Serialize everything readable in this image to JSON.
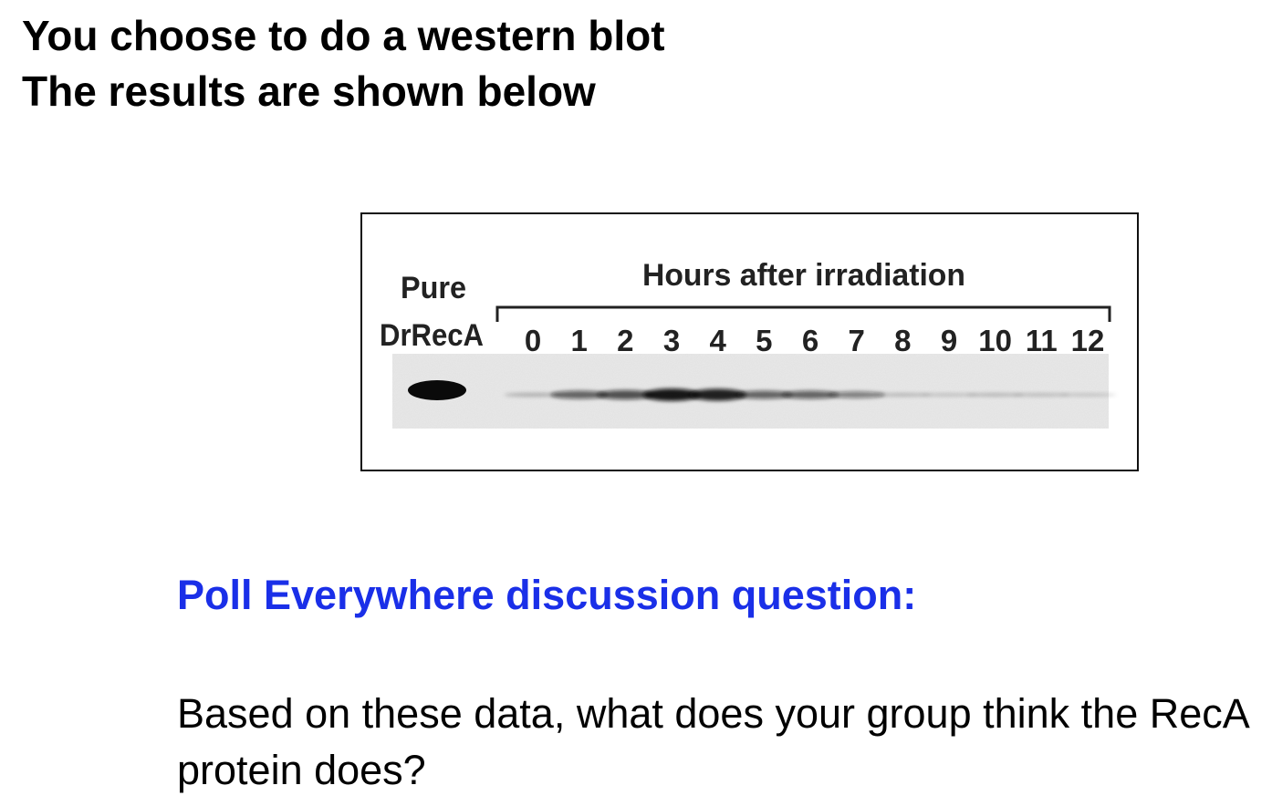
{
  "title": {
    "line1": "You choose to do a western blot",
    "line2": "The results are shown below"
  },
  "figure": {
    "control_label_line1": "Pure",
    "control_label_line2": "DrRecA",
    "bracket_label": "Hours after irradiation",
    "lanes": [
      {
        "label": "0",
        "intensity": 0.12
      },
      {
        "label": "1",
        "intensity": 0.55
      },
      {
        "label": "2",
        "intensity": 0.65
      },
      {
        "label": "3",
        "intensity": 0.95
      },
      {
        "label": "4",
        "intensity": 0.9
      },
      {
        "label": "5",
        "intensity": 0.55
      },
      {
        "label": "6",
        "intensity": 0.55
      },
      {
        "label": "7",
        "intensity": 0.4
      },
      {
        "label": "8",
        "intensity": 0.08
      },
      {
        "label": "9",
        "intensity": 0.04
      },
      {
        "label": "10",
        "intensity": 0.08
      },
      {
        "label": "11",
        "intensity": 0.06
      },
      {
        "label": "12",
        "intensity": 0.03
      }
    ]
  },
  "poll": {
    "heading": "Poll Everywhere discussion question:",
    "question": "Based on these data, what does your group think the RecA protein does?"
  },
  "colors": {
    "heading_blue": "#1a2fe8",
    "text": "#000000",
    "band": "#111111",
    "membrane": "#e9e9e9"
  }
}
